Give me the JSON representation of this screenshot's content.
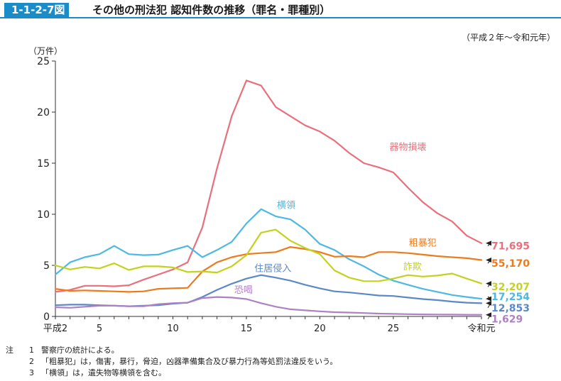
{
  "header": {
    "figure_number": "1-1-2-7図",
    "title": "その他の刑法犯 認知件数の推移（罪名・罪種別）"
  },
  "period_note": "（平成２年〜令和元年）",
  "notes": [
    {
      "prefix": "注",
      "num": "1",
      "text": "警察庁の統計による。"
    },
    {
      "prefix": "",
      "num": "2",
      "text": "「粗暴犯」は，傷害，暴行，脅迫，凶器準備集合及び暴力行為等処罰法違反をいう。"
    },
    {
      "prefix": "",
      "num": "3",
      "text": "「横領」は，遺失物等横領を含む。"
    }
  ],
  "chart_data": {
    "type": "line",
    "title": "",
    "xlabel": "",
    "ylabel": "（万件）",
    "ylim": [
      0,
      25
    ],
    "yticks": [
      0,
      5,
      10,
      15,
      20,
      25
    ],
    "grid": false,
    "x": [
      2,
      3,
      4,
      5,
      6,
      7,
      8,
      9,
      10,
      11,
      12,
      13,
      14,
      15,
      16,
      17,
      18,
      19,
      20,
      21,
      22,
      23,
      24,
      25,
      26,
      27,
      28,
      29,
      30,
      31
    ],
    "xticks": [
      {
        "x": 2,
        "label": "平成2"
      },
      {
        "x": 5,
        "label": "5"
      },
      {
        "x": 10,
        "label": "10"
      },
      {
        "x": 15,
        "label": "15"
      },
      {
        "x": 20,
        "label": "20"
      },
      {
        "x": 25,
        "label": "25"
      },
      {
        "x": 31,
        "label": "令和元"
      }
    ],
    "series": [
      {
        "name": "器物損壊",
        "color": "#e8707c",
        "end_value": "71,695",
        "values": [
          2.4,
          2.6,
          3.0,
          3.0,
          2.95,
          3.05,
          3.6,
          4.1,
          4.6,
          5.3,
          8.7,
          14.5,
          19.6,
          23.1,
          22.6,
          20.5,
          19.6,
          18.7,
          18.1,
          17.2,
          16.0,
          15.0,
          14.6,
          14.1,
          12.6,
          11.2,
          10.1,
          9.3,
          7.9,
          7.17
        ]
      },
      {
        "name": "横領",
        "color": "#4db8e2",
        "end_value": "17,254",
        "values": [
          4.1,
          5.3,
          5.8,
          6.1,
          6.9,
          6.1,
          6.0,
          6.05,
          6.5,
          6.9,
          5.8,
          6.5,
          7.3,
          9.1,
          10.5,
          9.8,
          9.5,
          8.5,
          7.1,
          6.5,
          5.6,
          4.9,
          4.1,
          3.5,
          3.1,
          2.7,
          2.4,
          2.1,
          1.9,
          1.73
        ]
      },
      {
        "name": "粗暴犯",
        "color": "#ec7b1c",
        "end_value": "55,170",
        "values": [
          2.7,
          2.5,
          2.55,
          2.5,
          2.45,
          2.4,
          2.45,
          2.7,
          2.75,
          2.8,
          4.4,
          5.3,
          5.8,
          6.1,
          6.2,
          6.3,
          6.8,
          6.6,
          6.3,
          5.85,
          5.9,
          5.8,
          6.3,
          6.3,
          6.2,
          6.05,
          5.9,
          5.8,
          5.7,
          5.52
        ]
      },
      {
        "name": "詐欺",
        "color": "#c3d21e",
        "end_value": "32,207",
        "values": [
          5.0,
          4.6,
          4.85,
          4.7,
          5.2,
          4.55,
          4.9,
          4.9,
          4.8,
          4.35,
          4.4,
          4.3,
          4.9,
          6.0,
          8.2,
          8.5,
          7.4,
          6.7,
          6.1,
          4.5,
          3.8,
          3.45,
          3.45,
          3.7,
          4.05,
          3.9,
          4.0,
          4.2,
          3.7,
          3.22
        ]
      },
      {
        "name": "住居侵入",
        "color": "#5b88c6",
        "end_value": "12,853",
        "values": [
          1.1,
          1.15,
          1.15,
          1.1,
          1.05,
          1.0,
          1.05,
          1.1,
          1.25,
          1.35,
          1.9,
          2.6,
          3.2,
          3.7,
          4.05,
          3.8,
          3.5,
          3.1,
          2.75,
          2.45,
          2.35,
          2.2,
          2.05,
          2.0,
          1.85,
          1.7,
          1.6,
          1.45,
          1.35,
          1.29
        ]
      },
      {
        "name": "恐喝",
        "color": "#ad81c2",
        "end_value": "1,629",
        "values": [
          0.9,
          0.85,
          0.95,
          1.05,
          1.05,
          1.0,
          1.0,
          1.2,
          1.3,
          1.35,
          1.8,
          1.9,
          1.85,
          1.7,
          1.3,
          0.95,
          0.7,
          0.6,
          0.5,
          0.42,
          0.38,
          0.33,
          0.28,
          0.25,
          0.22,
          0.2,
          0.19,
          0.18,
          0.17,
          0.16
        ]
      }
    ],
    "series_labels": [
      {
        "series": "器物損壊",
        "x": 26,
        "y": 16.3
      },
      {
        "series": "横領",
        "x": 17.7,
        "y": 10.6
      },
      {
        "series": "粗暴犯",
        "x": 27,
        "y": 6.9
      },
      {
        "series": "詐欺",
        "x": 26.3,
        "y": 4.6
      },
      {
        "series": "住居侵入",
        "x": 16.8,
        "y": 4.4
      },
      {
        "series": "恐喝",
        "x": 14.8,
        "y": 2.3
      }
    ],
    "end_labels": [
      {
        "series": "器物損壊",
        "target_y": 7.17,
        "label_y": 6.9
      },
      {
        "series": "粗暴犯",
        "target_y": 5.52,
        "label_y": 5.2
      },
      {
        "series": "詐欺",
        "target_y": 3.22,
        "label_y": 2.9
      },
      {
        "series": "横領",
        "target_y": 1.73,
        "label_y": 1.95
      },
      {
        "series": "住居侵入",
        "target_y": 1.29,
        "label_y": 0.85
      },
      {
        "series": "恐喝",
        "target_y": 0.16,
        "label_y": -0.25
      }
    ]
  }
}
